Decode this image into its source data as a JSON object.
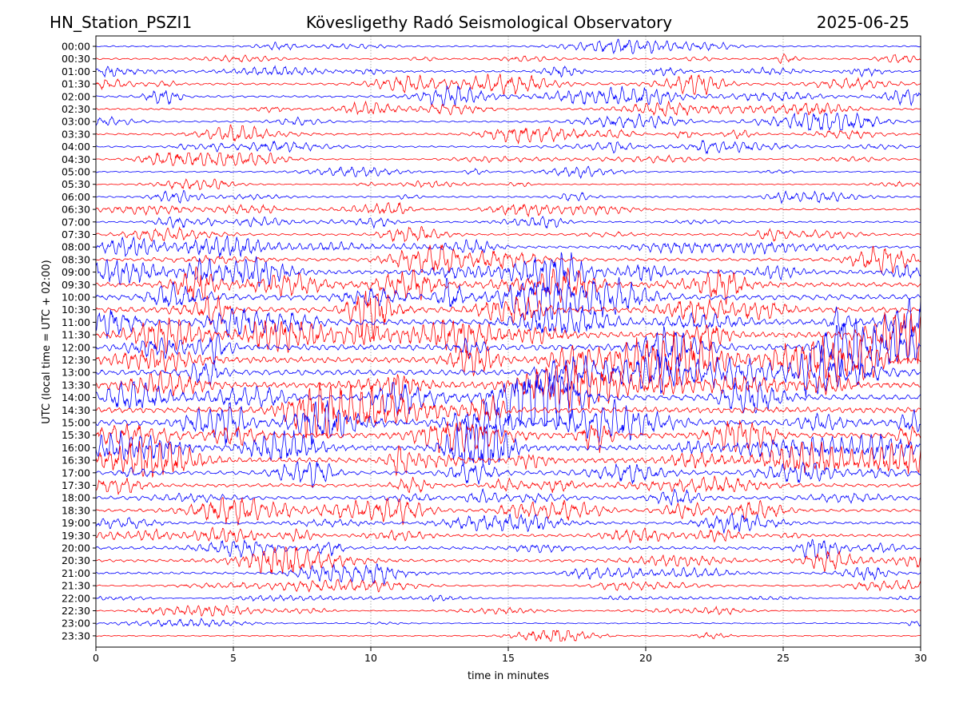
{
  "header": {
    "left": "HN_Station_PSZI1",
    "center": "Kövesligethy Radó Seismological Observatory",
    "right": "2025-06-25"
  },
  "chart_data": {
    "type": "line",
    "title": "Kövesligethy Radó Seismological Observatory",
    "xlabel": "time in minutes",
    "ylabel": "UTC (local time = UTC + 02:00)",
    "xlim": [
      0,
      30
    ],
    "xticks": [
      0,
      5,
      10,
      15,
      20,
      25,
      30
    ],
    "x_grid": true,
    "series_colors": [
      "#0000ff",
      "#ff0000"
    ],
    "rows": [
      "00:00",
      "00:30",
      "01:00",
      "01:30",
      "02:00",
      "02:30",
      "03:00",
      "03:30",
      "04:00",
      "04:30",
      "05:00",
      "05:30",
      "06:00",
      "06:30",
      "07:00",
      "07:30",
      "08:00",
      "08:30",
      "09:00",
      "09:30",
      "10:00",
      "10:30",
      "11:00",
      "11:30",
      "12:00",
      "12:30",
      "13:00",
      "13:30",
      "14:00",
      "14:30",
      "15:00",
      "15:30",
      "16:00",
      "16:30",
      "17:00",
      "17:30",
      "18:00",
      "18:30",
      "19:00",
      "19:30",
      "20:00",
      "20:30",
      "21:00",
      "21:30",
      "22:00",
      "22:30",
      "23:00",
      "23:30"
    ],
    "row_activity": [
      0.35,
      0.4,
      0.45,
      0.5,
      0.5,
      0.45,
      0.4,
      0.45,
      0.4,
      0.3,
      0.3,
      0.25,
      0.4,
      0.45,
      0.4,
      0.5,
      0.55,
      0.7,
      0.95,
      1.1,
      1.3,
      1.3,
      1.35,
      1.4,
      1.4,
      1.4,
      1.35,
      1.3,
      1.35,
      1.35,
      1.4,
      1.35,
      1.3,
      1.2,
      0.9,
      0.8,
      0.8,
      0.7,
      0.6,
      0.65,
      0.7,
      0.65,
      0.55,
      0.35,
      0.2,
      0.25,
      0.25,
      0.25
    ]
  }
}
